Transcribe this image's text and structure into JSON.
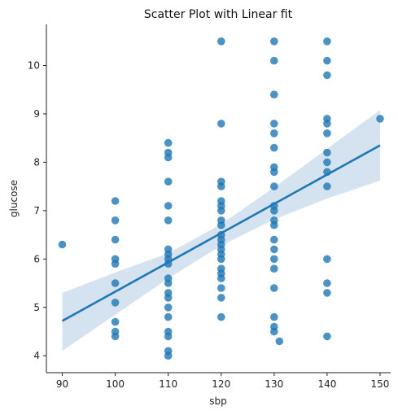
{
  "chart_data": {
    "type": "scatter",
    "title": "Scatter Plot with Linear fit",
    "xlabel": "sbp",
    "ylabel": "glucose",
    "xlim": [
      87,
      152
    ],
    "ylim": [
      3.65,
      10.85
    ],
    "xticks": [
      90,
      100,
      110,
      120,
      130,
      140,
      150
    ],
    "yticks": [
      4,
      5,
      6,
      7,
      8,
      9,
      10
    ],
    "grid": false,
    "colors": {
      "points": "#1f77b4",
      "line": "#1f77b4",
      "band": "#c7d9ec"
    },
    "points": [
      {
        "x": 90,
        "y": 6.3
      },
      {
        "x": 100,
        "y": 7.2
      },
      {
        "x": 100,
        "y": 6.8
      },
      {
        "x": 100,
        "y": 6.4
      },
      {
        "x": 100,
        "y": 6.0
      },
      {
        "x": 100,
        "y": 5.9
      },
      {
        "x": 100,
        "y": 5.5
      },
      {
        "x": 100,
        "y": 5.1
      },
      {
        "x": 100,
        "y": 4.7
      },
      {
        "x": 100,
        "y": 4.5
      },
      {
        "x": 100,
        "y": 4.4
      },
      {
        "x": 110,
        "y": 8.4
      },
      {
        "x": 110,
        "y": 8.2
      },
      {
        "x": 110,
        "y": 8.1
      },
      {
        "x": 110,
        "y": 7.6
      },
      {
        "x": 110,
        "y": 7.1
      },
      {
        "x": 110,
        "y": 6.8
      },
      {
        "x": 110,
        "y": 6.2
      },
      {
        "x": 110,
        "y": 6.1
      },
      {
        "x": 110,
        "y": 6.0
      },
      {
        "x": 110,
        "y": 5.9
      },
      {
        "x": 110,
        "y": 5.6
      },
      {
        "x": 110,
        "y": 5.5
      },
      {
        "x": 110,
        "y": 5.3
      },
      {
        "x": 110,
        "y": 5.2
      },
      {
        "x": 110,
        "y": 5.0
      },
      {
        "x": 110,
        "y": 4.8
      },
      {
        "x": 110,
        "y": 4.5
      },
      {
        "x": 110,
        "y": 4.4
      },
      {
        "x": 110,
        "y": 4.1
      },
      {
        "x": 110,
        "y": 4.0
      },
      {
        "x": 120,
        "y": 10.5
      },
      {
        "x": 120,
        "y": 8.8
      },
      {
        "x": 120,
        "y": 7.6
      },
      {
        "x": 120,
        "y": 7.5
      },
      {
        "x": 120,
        "y": 7.2
      },
      {
        "x": 120,
        "y": 7.1
      },
      {
        "x": 120,
        "y": 7.0
      },
      {
        "x": 120,
        "y": 6.8
      },
      {
        "x": 120,
        "y": 6.7
      },
      {
        "x": 120,
        "y": 6.5
      },
      {
        "x": 120,
        "y": 6.4
      },
      {
        "x": 120,
        "y": 6.3
      },
      {
        "x": 120,
        "y": 6.2
      },
      {
        "x": 120,
        "y": 6.1
      },
      {
        "x": 120,
        "y": 6.0
      },
      {
        "x": 120,
        "y": 5.8
      },
      {
        "x": 120,
        "y": 5.7
      },
      {
        "x": 120,
        "y": 5.6
      },
      {
        "x": 120,
        "y": 5.4
      },
      {
        "x": 120,
        "y": 5.2
      },
      {
        "x": 120,
        "y": 4.8
      },
      {
        "x": 130,
        "y": 10.5
      },
      {
        "x": 130,
        "y": 10.1
      },
      {
        "x": 130,
        "y": 9.4
      },
      {
        "x": 130,
        "y": 8.8
      },
      {
        "x": 130,
        "y": 8.6
      },
      {
        "x": 130,
        "y": 8.3
      },
      {
        "x": 130,
        "y": 7.9
      },
      {
        "x": 130,
        "y": 7.8
      },
      {
        "x": 130,
        "y": 7.5
      },
      {
        "x": 130,
        "y": 7.1
      },
      {
        "x": 130,
        "y": 7.0
      },
      {
        "x": 130,
        "y": 6.8
      },
      {
        "x": 130,
        "y": 6.7
      },
      {
        "x": 130,
        "y": 6.4
      },
      {
        "x": 130,
        "y": 6.2
      },
      {
        "x": 130,
        "y": 6.0
      },
      {
        "x": 130,
        "y": 5.8
      },
      {
        "x": 130,
        "y": 5.4
      },
      {
        "x": 130,
        "y": 4.8
      },
      {
        "x": 130,
        "y": 4.6
      },
      {
        "x": 130,
        "y": 4.5
      },
      {
        "x": 131,
        "y": 4.3
      },
      {
        "x": 140,
        "y": 10.5
      },
      {
        "x": 140,
        "y": 10.1
      },
      {
        "x": 140,
        "y": 9.8
      },
      {
        "x": 140,
        "y": 8.9
      },
      {
        "x": 140,
        "y": 8.8
      },
      {
        "x": 140,
        "y": 8.6
      },
      {
        "x": 140,
        "y": 8.2
      },
      {
        "x": 140,
        "y": 8.0
      },
      {
        "x": 140,
        "y": 7.8
      },
      {
        "x": 140,
        "y": 7.5
      },
      {
        "x": 140,
        "y": 6.0
      },
      {
        "x": 140,
        "y": 5.5
      },
      {
        "x": 140,
        "y": 5.3
      },
      {
        "x": 140,
        "y": 4.4
      },
      {
        "x": 150,
        "y": 8.9
      }
    ],
    "fit_line": {
      "x": [
        90,
        150
      ],
      "y": [
        4.72,
        8.35
      ]
    },
    "confidence_band": {
      "x": [
        90,
        100,
        110,
        120,
        130,
        140,
        150
      ],
      "lower": [
        4.1,
        4.85,
        5.6,
        6.28,
        6.82,
        7.25,
        7.62
      ],
      "upper": [
        5.3,
        5.72,
        6.12,
        6.72,
        7.48,
        8.28,
        9.08
      ]
    }
  }
}
